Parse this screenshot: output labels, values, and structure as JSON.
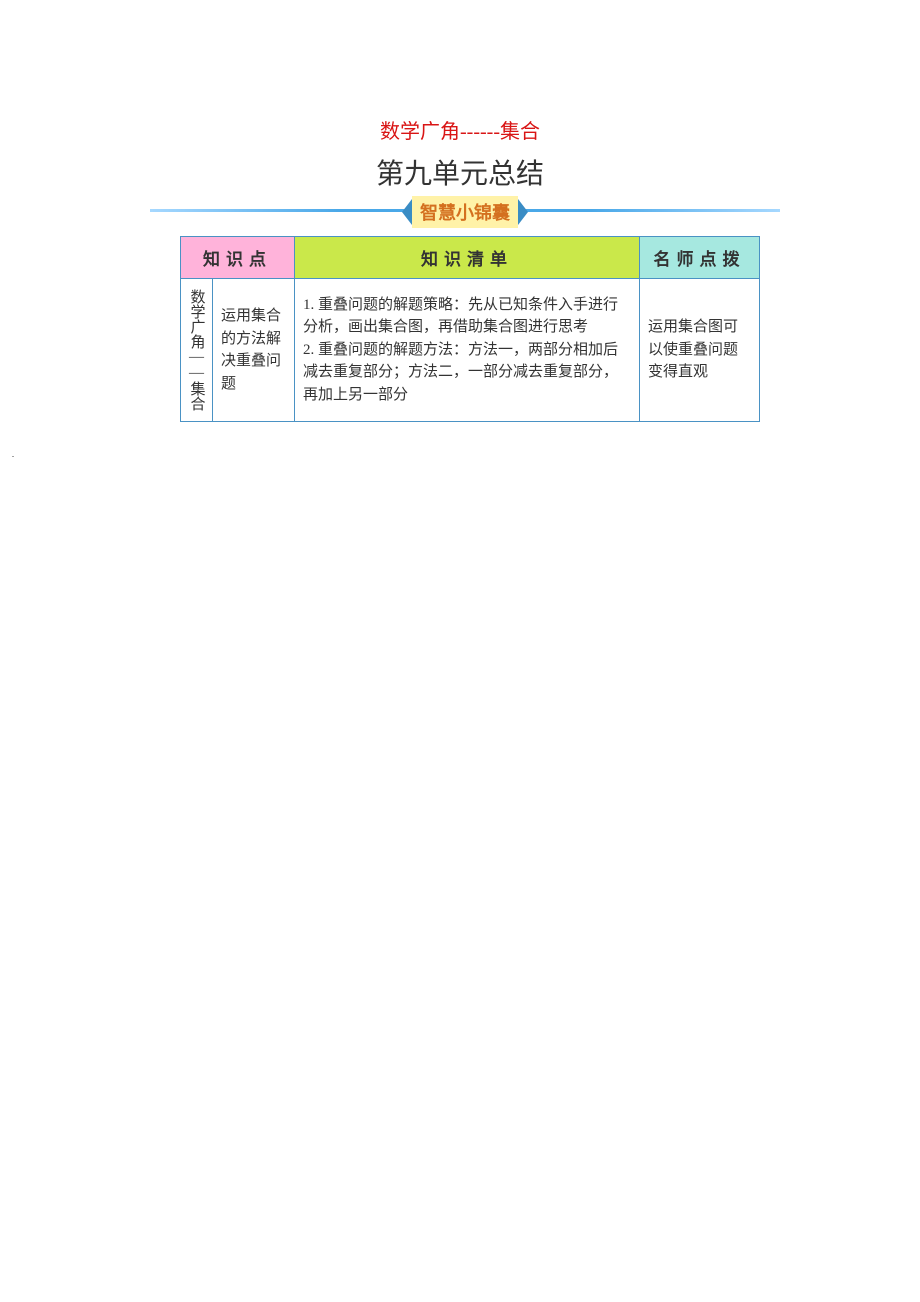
{
  "colors": {
    "title_red": "#d91515",
    "unit_title": "#333333",
    "banner_line_start": "#a6d8ff",
    "banner_line_end": "#4aa8e8",
    "banner_bg": "#fff2a8",
    "banner_text": "#d4701f",
    "banner_arrow": "#3a8cc4",
    "header_bg_1": "#ffb3da",
    "header_bg_2": "#cae84a",
    "header_bg_3": "#a6e8e0",
    "header_text": "#333333",
    "table_border": "#4a92c4",
    "table_text": "#333333"
  },
  "fontsizes": {
    "red_title": 20,
    "unit_title": 28,
    "banner_label": 18,
    "table_header": 17,
    "table_body": 15
  },
  "title_red": "数学广角------集合",
  "unit_title": "第九单元总结",
  "banner_label": "智慧小锦囊",
  "table": {
    "headers": [
      "知识点",
      "知识清单",
      "名师点拨"
    ],
    "row": {
      "vcol": "数学广角——集合",
      "subcol": "运用集合的方法解决重叠问题",
      "listcol": "1. 重叠问题的解题策略：先从已知条件入手进行分析，画出集合图，再借助集合图进行思考\n2. 重叠问题的解题方法：方法一，两部分相加后减去重复部分；方法二，一部分减去重复部分，再加上另一部分",
      "tipcol": "运用集合图可以使重叠问题变得直观"
    }
  }
}
